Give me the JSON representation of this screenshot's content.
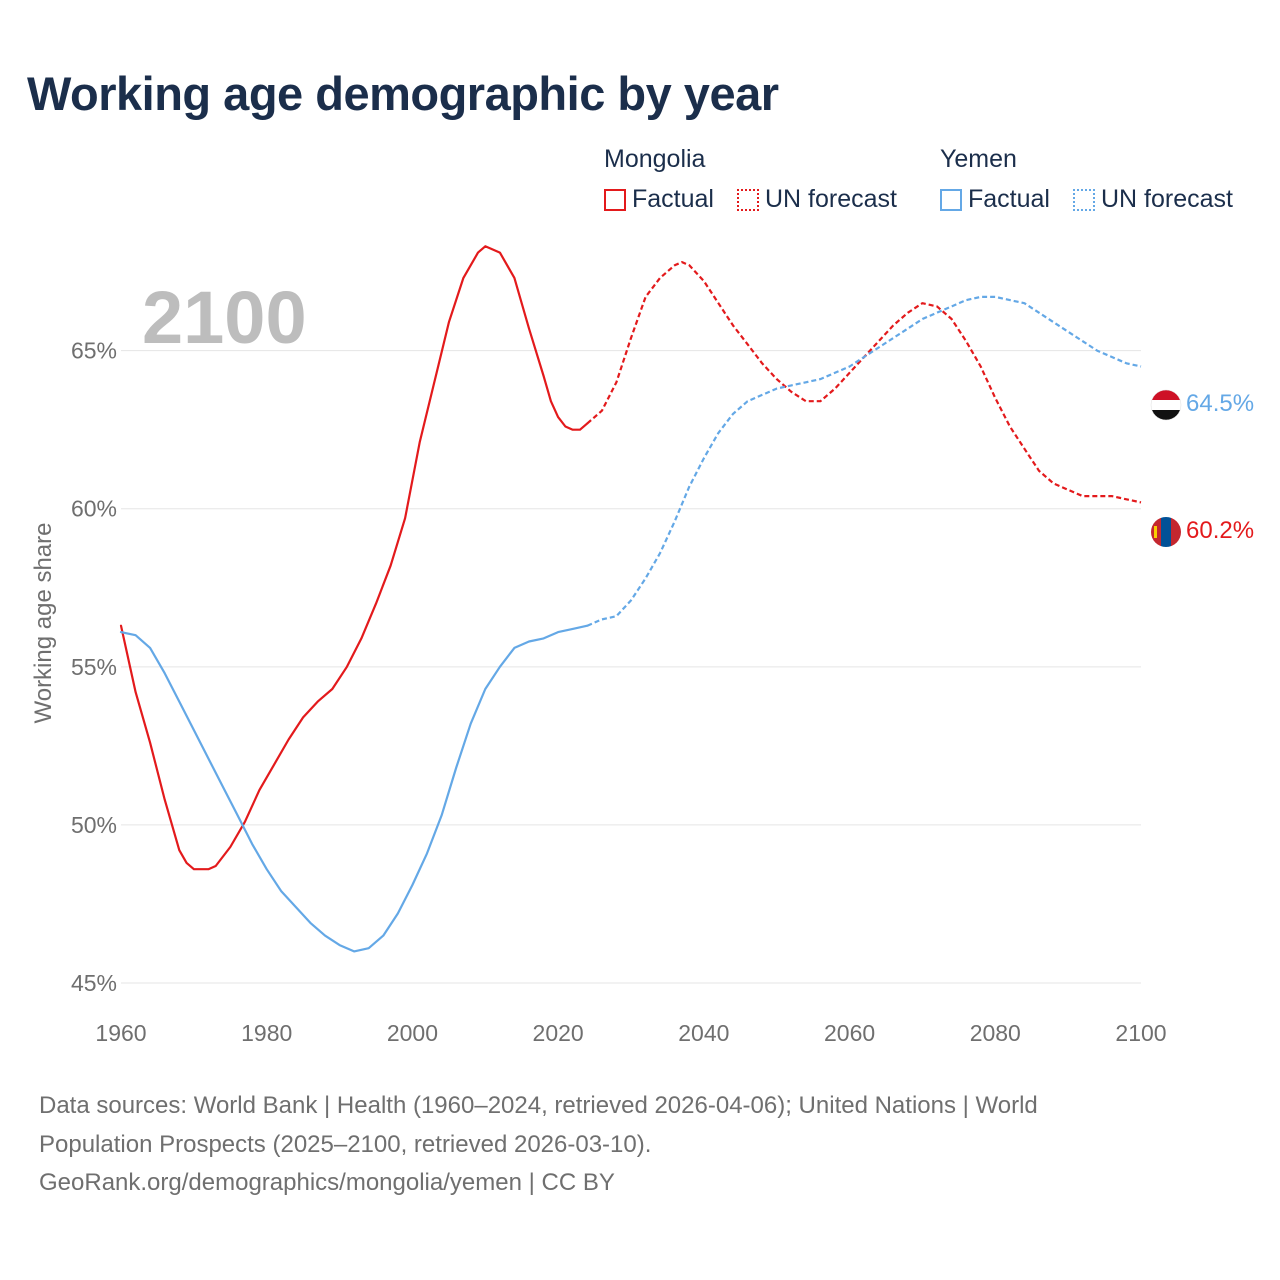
{
  "title": "Working age demographic by year",
  "legend": {
    "groups": [
      {
        "name": "Mongolia",
        "factual_label": "Factual",
        "forecast_label": "UN forecast",
        "color": "#e31a1c"
      },
      {
        "name": "Yemen",
        "factual_label": "Factual",
        "forecast_label": "UN forecast",
        "color": "#64a8e6"
      }
    ]
  },
  "year_watermark": "2100",
  "flags": [
    {
      "country": "Yemen",
      "icon": "yemen-flag-icon"
    },
    {
      "country": "Mongolia",
      "icon": "mongolia-flag-icon"
    }
  ],
  "chart_data": {
    "type": "line",
    "title": "Working age demographic by year",
    "xlabel": "",
    "ylabel": "Working age share",
    "xlim": [
      1960,
      2100
    ],
    "ylim": [
      45,
      68.5
    ],
    "x_ticks": [
      1960,
      1980,
      2000,
      2020,
      2040,
      2060,
      2080,
      2100
    ],
    "x_tick_labels": [
      "1960",
      "1980",
      "2000",
      "2020",
      "2040",
      "2060",
      "2080",
      "2100"
    ],
    "y_ticks": [
      45,
      50,
      55,
      60,
      65
    ],
    "y_tick_labels": [
      "45%",
      "50%",
      "55%",
      "60%",
      "65%"
    ],
    "grid": "horizontal",
    "factual_end_year": 2024,
    "series": [
      {
        "name": "Mongolia",
        "color": "#e31a1c",
        "end_label": "60.2%",
        "factual": [
          [
            1960,
            56.3
          ],
          [
            1962,
            54.2
          ],
          [
            1964,
            52.6
          ],
          [
            1966,
            50.8
          ],
          [
            1968,
            49.2
          ],
          [
            1969,
            48.8
          ],
          [
            1970,
            48.6
          ],
          [
            1972,
            48.6
          ],
          [
            1973,
            48.7
          ],
          [
            1975,
            49.3
          ],
          [
            1977,
            50.1
          ],
          [
            1979,
            51.1
          ],
          [
            1981,
            51.9
          ],
          [
            1983,
            52.7
          ],
          [
            1985,
            53.4
          ],
          [
            1987,
            53.9
          ],
          [
            1989,
            54.3
          ],
          [
            1991,
            55.0
          ],
          [
            1993,
            55.9
          ],
          [
            1995,
            57.0
          ],
          [
            1997,
            58.2
          ],
          [
            1999,
            59.7
          ],
          [
            2001,
            62.1
          ],
          [
            2003,
            64.0
          ],
          [
            2005,
            65.9
          ],
          [
            2007,
            67.3
          ],
          [
            2009,
            68.1
          ],
          [
            2010,
            68.3
          ],
          [
            2012,
            68.1
          ],
          [
            2014,
            67.3
          ],
          [
            2016,
            65.7
          ],
          [
            2018,
            64.2
          ],
          [
            2019,
            63.4
          ],
          [
            2020,
            62.9
          ],
          [
            2021,
            62.6
          ],
          [
            2022,
            62.5
          ],
          [
            2023,
            62.5
          ],
          [
            2024,
            62.7
          ]
        ],
        "forecast": [
          [
            2024,
            62.7
          ],
          [
            2026,
            63.1
          ],
          [
            2028,
            64.0
          ],
          [
            2030,
            65.4
          ],
          [
            2032,
            66.7
          ],
          [
            2034,
            67.3
          ],
          [
            2036,
            67.7
          ],
          [
            2037,
            67.8
          ],
          [
            2038,
            67.7
          ],
          [
            2040,
            67.2
          ],
          [
            2042,
            66.5
          ],
          [
            2044,
            65.8
          ],
          [
            2046,
            65.2
          ],
          [
            2048,
            64.6
          ],
          [
            2050,
            64.1
          ],
          [
            2052,
            63.7
          ],
          [
            2054,
            63.4
          ],
          [
            2056,
            63.4
          ],
          [
            2058,
            63.8
          ],
          [
            2060,
            64.3
          ],
          [
            2062,
            64.8
          ],
          [
            2064,
            65.3
          ],
          [
            2066,
            65.8
          ],
          [
            2068,
            66.2
          ],
          [
            2070,
            66.5
          ],
          [
            2072,
            66.4
          ],
          [
            2074,
            66.0
          ],
          [
            2076,
            65.3
          ],
          [
            2078,
            64.5
          ],
          [
            2080,
            63.5
          ],
          [
            2082,
            62.6
          ],
          [
            2084,
            61.9
          ],
          [
            2086,
            61.2
          ],
          [
            2088,
            60.8
          ],
          [
            2090,
            60.6
          ],
          [
            2092,
            60.4
          ],
          [
            2094,
            60.4
          ],
          [
            2096,
            60.4
          ],
          [
            2098,
            60.3
          ],
          [
            2100,
            60.2
          ]
        ]
      },
      {
        "name": "Yemen",
        "color": "#64a8e6",
        "end_label": "64.5%",
        "factual": [
          [
            1960,
            56.1
          ],
          [
            1962,
            56.0
          ],
          [
            1964,
            55.6
          ],
          [
            1966,
            54.8
          ],
          [
            1968,
            53.9
          ],
          [
            1970,
            53.0
          ],
          [
            1972,
            52.1
          ],
          [
            1974,
            51.2
          ],
          [
            1976,
            50.3
          ],
          [
            1978,
            49.4
          ],
          [
            1980,
            48.6
          ],
          [
            1982,
            47.9
          ],
          [
            1984,
            47.4
          ],
          [
            1986,
            46.9
          ],
          [
            1988,
            46.5
          ],
          [
            1990,
            46.2
          ],
          [
            1992,
            46.0
          ],
          [
            1994,
            46.1
          ],
          [
            1996,
            46.5
          ],
          [
            1998,
            47.2
          ],
          [
            2000,
            48.1
          ],
          [
            2002,
            49.1
          ],
          [
            2004,
            50.3
          ],
          [
            2006,
            51.8
          ],
          [
            2008,
            53.2
          ],
          [
            2010,
            54.3
          ],
          [
            2012,
            55.0
          ],
          [
            2014,
            55.6
          ],
          [
            2016,
            55.8
          ],
          [
            2018,
            55.9
          ],
          [
            2020,
            56.1
          ],
          [
            2022,
            56.2
          ],
          [
            2024,
            56.3
          ]
        ],
        "forecast": [
          [
            2024,
            56.3
          ],
          [
            2026,
            56.5
          ],
          [
            2028,
            56.6
          ],
          [
            2030,
            57.1
          ],
          [
            2032,
            57.8
          ],
          [
            2034,
            58.6
          ],
          [
            2036,
            59.6
          ],
          [
            2038,
            60.7
          ],
          [
            2040,
            61.6
          ],
          [
            2042,
            62.4
          ],
          [
            2044,
            63.0
          ],
          [
            2046,
            63.4
          ],
          [
            2048,
            63.6
          ],
          [
            2050,
            63.8
          ],
          [
            2052,
            63.9
          ],
          [
            2054,
            64.0
          ],
          [
            2056,
            64.1
          ],
          [
            2058,
            64.3
          ],
          [
            2060,
            64.5
          ],
          [
            2062,
            64.8
          ],
          [
            2064,
            65.1
          ],
          [
            2066,
            65.4
          ],
          [
            2068,
            65.7
          ],
          [
            2070,
            66.0
          ],
          [
            2072,
            66.2
          ],
          [
            2074,
            66.4
          ],
          [
            2076,
            66.6
          ],
          [
            2078,
            66.7
          ],
          [
            2080,
            66.7
          ],
          [
            2082,
            66.6
          ],
          [
            2084,
            66.5
          ],
          [
            2086,
            66.2
          ],
          [
            2088,
            65.9
          ],
          [
            2090,
            65.6
          ],
          [
            2092,
            65.3
          ],
          [
            2094,
            65.0
          ],
          [
            2096,
            64.8
          ],
          [
            2098,
            64.6
          ],
          [
            2100,
            64.5
          ]
        ]
      }
    ]
  },
  "source": {
    "line1": "Data sources: World Bank | Health (1960–2024, retrieved 2026-04-06); United Nations | World",
    "line2": "Population Prospects (2025–2100, retrieved 2026-03-10).",
    "line3": "GeoRank.org/demographics/mongolia/yemen | CC BY"
  }
}
